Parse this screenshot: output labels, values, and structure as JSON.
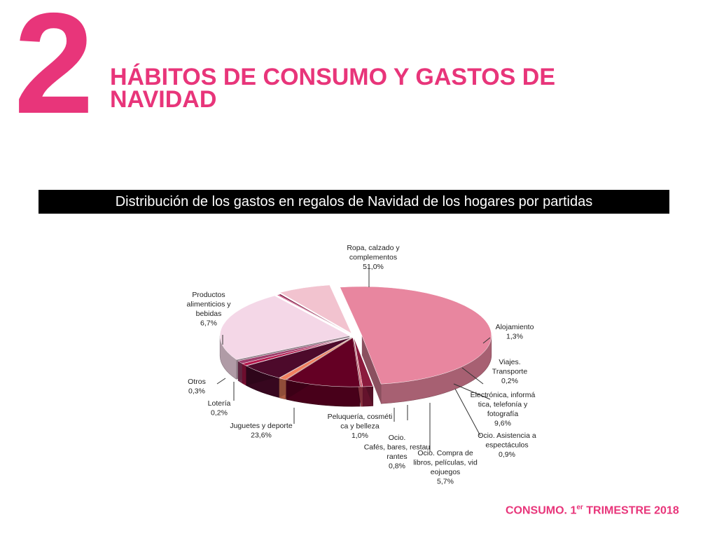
{
  "section": {
    "number": "2"
  },
  "page_title": "HÁBITOS DE CONSUMO Y GASTOS DE NAVIDAD",
  "chart_banner": "Distribución de los gastos en regalos de Navidad de los hogares por partidas",
  "footer": {
    "prefix": "CONSUMO. 1",
    "sup": "er",
    "suffix": " TRIMESTRE 2018"
  },
  "colors": {
    "accent": "#e8357a",
    "banner_bg": "#000000"
  },
  "chart_data": {
    "type": "pie",
    "style": "3d-exploded",
    "categories": [
      "Ropa, calzado y complementos",
      "Alojamiento",
      "Viajes. Transporte",
      "Electrónica, informática, telefonía y fotografía",
      "Ocio. Asistencia a espectáculos",
      "Ocio. Compra de libros, películas, videojuegos",
      "Ocio. Cafés, bares, restaurantes",
      "Peluquería, cosmética y belleza",
      "Juguetes y deporte",
      "Lotería",
      "Otros",
      "Productos alimenticios y bebidas"
    ],
    "values": [
      51.0,
      1.3,
      0.2,
      9.6,
      0.9,
      5.7,
      0.8,
      1.0,
      23.6,
      0.2,
      0.3,
      6.7
    ],
    "colors": [
      "#e8869f",
      "#8b1a3d",
      "#d24d62",
      "#640024",
      "#f0805f",
      "#4d0a2b",
      "#b5174d",
      "#9e3d6b",
      "#f4d7e7",
      "#c2185b",
      "#7a0f3a",
      "#f2c3cf"
    ],
    "labels": [
      {
        "lines": [
          "Ropa, calzado y",
          "complementos",
          "51,0%"
        ]
      },
      {
        "lines": [
          "Alojamiento",
          "1,3%"
        ]
      },
      {
        "lines": [
          "Viajes.",
          "Transporte",
          "0,2%"
        ]
      },
      {
        "lines": [
          "Electrónica, informá",
          "tica, telefonía y",
          "fotografía",
          "9,6%"
        ]
      },
      {
        "lines": [
          "Ocio. Asistencia a",
          "espectáculos",
          "0,9%"
        ]
      },
      {
        "lines": [
          "Ocio. Compra de",
          "libros, películas, vid",
          "eojuegos",
          "5,7%"
        ]
      },
      {
        "lines": [
          "Ocio.",
          "Cafés, bares, restau",
          "rantes",
          "0,8%"
        ]
      },
      {
        "lines": [
          "Peluquería, cosméti",
          "ca y belleza",
          "1,0%"
        ]
      },
      {
        "lines": [
          "Juguetes y deporte",
          "23,6%"
        ]
      },
      {
        "lines": [
          "Lotería",
          "0,2%"
        ]
      },
      {
        "lines": [
          "Otros",
          "0,3%"
        ]
      },
      {
        "lines": [
          "Productos",
          "alimenticios y",
          "bebidas",
          "6,7%"
        ]
      }
    ]
  }
}
